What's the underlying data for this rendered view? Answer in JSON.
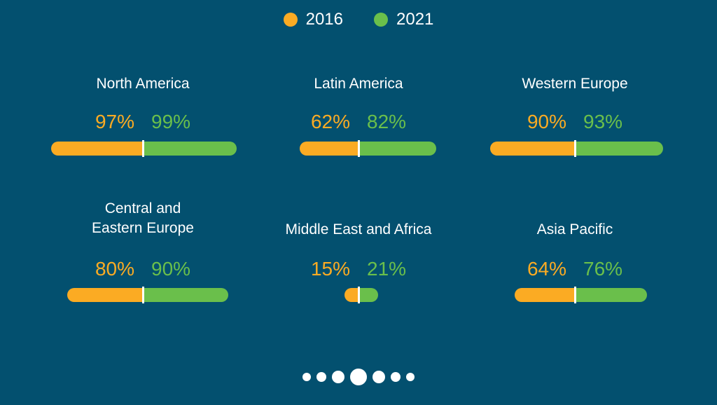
{
  "colors": {
    "old": "#fbab23",
    "new": "#6abf4b",
    "background": "#03506f"
  },
  "legend": [
    {
      "label": "2016",
      "color": "#fbab23"
    },
    {
      "label": "2021",
      "color": "#6abf4b"
    }
  ],
  "chart_data": {
    "type": "bar",
    "series": [
      {
        "name": "2016",
        "values": [
          97,
          62,
          90,
          80,
          15,
          64
        ]
      },
      {
        "name": "2021",
        "values": [
          99,
          82,
          93,
          90,
          21,
          76
        ]
      }
    ],
    "categories": [
      "North America",
      "Latin America",
      "Western Europe",
      "Central and Eastern Europe",
      "Middle East and Africa",
      "Asia Pacific"
    ],
    "regions": [
      {
        "name": "North America",
        "name_lines": [
          "North America"
        ],
        "v2016": 97,
        "v2021": 99,
        "label2016": "97%",
        "label2021": "99%"
      },
      {
        "name": "Latin America",
        "name_lines": [
          "Latin America"
        ],
        "v2016": 62,
        "v2021": 82,
        "label2016": "62%",
        "label2021": "82%"
      },
      {
        "name": "Western Europe",
        "name_lines": [
          "Western Europe"
        ],
        "v2016": 90,
        "v2021": 93,
        "label2016": "90%",
        "label2021": "93%"
      },
      {
        "name": "Central and Eastern Europe",
        "name_lines": [
          "Central and",
          "Eastern Europe"
        ],
        "v2016": 80,
        "v2021": 90,
        "label2016": "80%",
        "label2021": "90%"
      },
      {
        "name": "Middle East and Africa",
        "name_lines": [
          "Middle East and Africa"
        ],
        "v2016": 15,
        "v2021": 21,
        "label2016": "15%",
        "label2021": "21%"
      },
      {
        "name": "Asia Pacific",
        "name_lines": [
          "Asia Pacific"
        ],
        "v2016": 64,
        "v2021": 76,
        "label2016": "64%",
        "label2021": "76%"
      }
    ]
  },
  "pager": {
    "count": 7,
    "active": 3
  }
}
